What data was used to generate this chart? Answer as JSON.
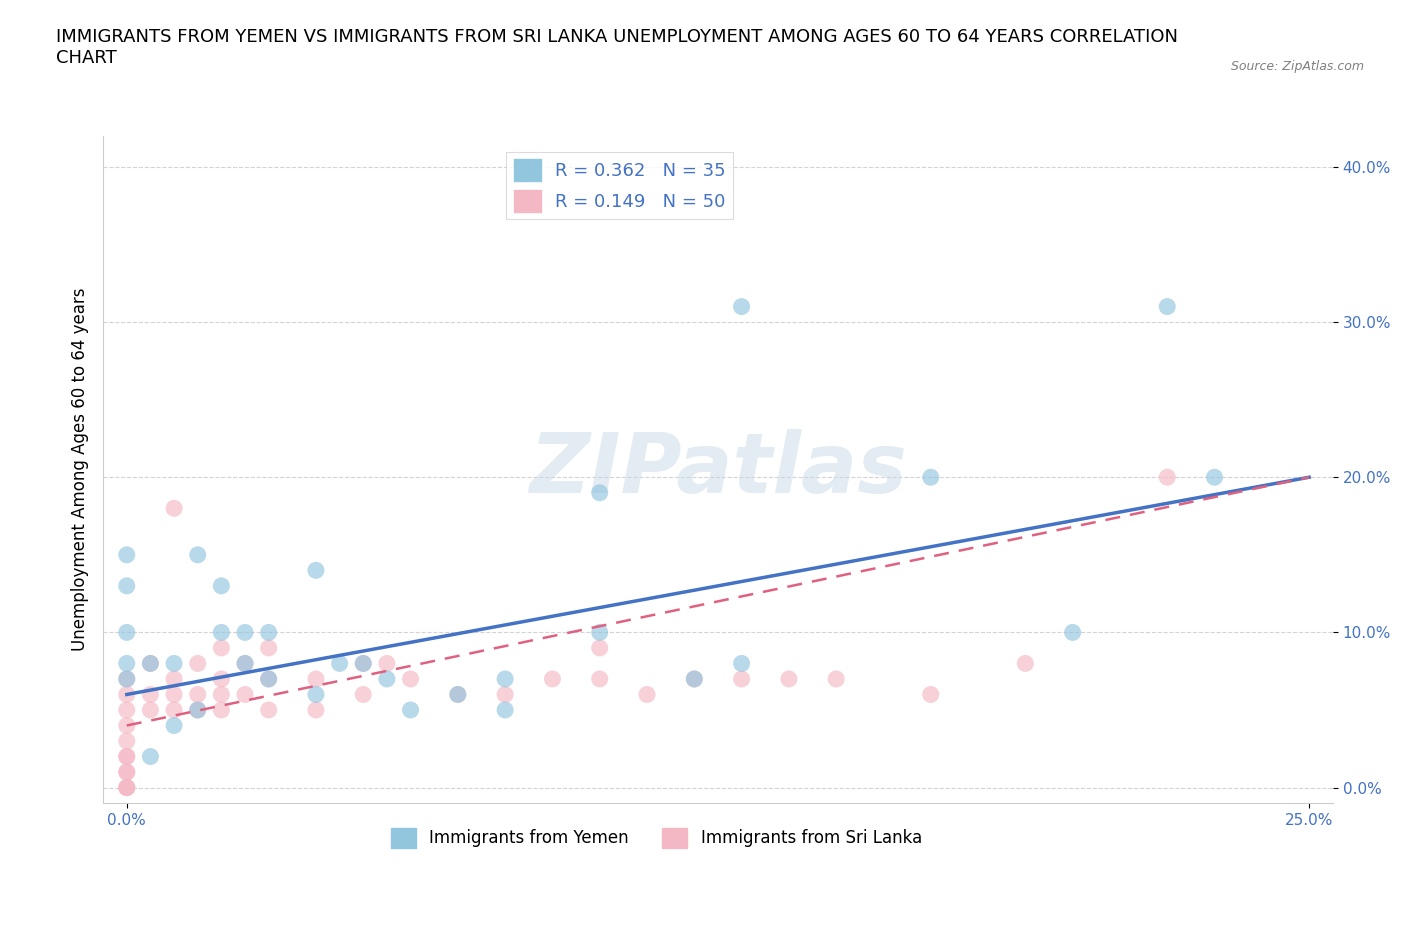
{
  "title": "IMMIGRANTS FROM YEMEN VS IMMIGRANTS FROM SRI LANKA UNEMPLOYMENT AMONG AGES 60 TO 64 YEARS CORRELATION\nCHART",
  "source_text": "Source: ZipAtlas.com",
  "ylabel": "Unemployment Among Ages 60 to 64 years",
  "watermark": "ZIPatlas",
  "xlim": [
    -0.005,
    0.255
  ],
  "ylim": [
    -0.01,
    0.42
  ],
  "xticks": [
    0.0,
    0.25
  ],
  "xticklabels": [
    "0.0%",
    "25.0%"
  ],
  "yticks": [
    0.0,
    0.1,
    0.2,
    0.3,
    0.4
  ],
  "yticklabels": [
    "0.0%",
    "10.0%",
    "20.0%",
    "30.0%",
    "40.0%"
  ],
  "legend_R_yemen": "R = 0.362",
  "legend_N_yemen": "N = 35",
  "legend_R_srilanka": "R = 0.149",
  "legend_N_srilanka": "N = 50",
  "color_yemen": "#92C5DE",
  "color_srilanka": "#F4B8C4",
  "color_line_yemen": "#4472C4",
  "color_line_srilanka": "#E06080",
  "title_fontsize": 13,
  "axis_label_fontsize": 12,
  "tick_fontsize": 11,
  "line_yemen_x0": 0.0,
  "line_yemen_y0": 0.06,
  "line_yemen_x1": 0.25,
  "line_yemen_y1": 0.2,
  "line_srilanka_x0": 0.0,
  "line_srilanka_y0": 0.04,
  "line_srilanka_x1": 0.25,
  "line_srilanka_y1": 0.2,
  "yemen_x": [
    0.0,
    0.0,
    0.0,
    0.0,
    0.0,
    0.005,
    0.01,
    0.015,
    0.02,
    0.025,
    0.03,
    0.04,
    0.04,
    0.05,
    0.055,
    0.07,
    0.08,
    0.1,
    0.1,
    0.12,
    0.13,
    0.17,
    0.22,
    0.23,
    0.005,
    0.01,
    0.015,
    0.02,
    0.025,
    0.03,
    0.045,
    0.06,
    0.08,
    0.13,
    0.2
  ],
  "yemen_y": [
    0.08,
    0.1,
    0.13,
    0.15,
    0.07,
    0.08,
    0.08,
    0.15,
    0.1,
    0.08,
    0.07,
    0.06,
    0.14,
    0.08,
    0.07,
    0.06,
    0.07,
    0.1,
    0.19,
    0.07,
    0.31,
    0.2,
    0.31,
    0.2,
    0.02,
    0.04,
    0.05,
    0.13,
    0.1,
    0.1,
    0.08,
    0.05,
    0.05,
    0.08,
    0.1
  ],
  "srilanka_x": [
    0.0,
    0.0,
    0.0,
    0.0,
    0.0,
    0.0,
    0.0,
    0.0,
    0.0,
    0.0,
    0.0,
    0.0,
    0.005,
    0.005,
    0.005,
    0.01,
    0.01,
    0.01,
    0.01,
    0.015,
    0.015,
    0.015,
    0.02,
    0.02,
    0.02,
    0.02,
    0.025,
    0.025,
    0.03,
    0.03,
    0.03,
    0.04,
    0.04,
    0.05,
    0.05,
    0.055,
    0.06,
    0.07,
    0.08,
    0.09,
    0.1,
    0.1,
    0.11,
    0.12,
    0.13,
    0.14,
    0.15,
    0.17,
    0.19,
    0.22
  ],
  "srilanka_y": [
    0.0,
    0.0,
    0.0,
    0.01,
    0.01,
    0.02,
    0.02,
    0.03,
    0.04,
    0.05,
    0.06,
    0.07,
    0.05,
    0.06,
    0.08,
    0.05,
    0.06,
    0.07,
    0.18,
    0.05,
    0.06,
    0.08,
    0.05,
    0.06,
    0.07,
    0.09,
    0.06,
    0.08,
    0.05,
    0.07,
    0.09,
    0.05,
    0.07,
    0.06,
    0.08,
    0.08,
    0.07,
    0.06,
    0.06,
    0.07,
    0.07,
    0.09,
    0.06,
    0.07,
    0.07,
    0.07,
    0.07,
    0.06,
    0.08,
    0.2
  ]
}
